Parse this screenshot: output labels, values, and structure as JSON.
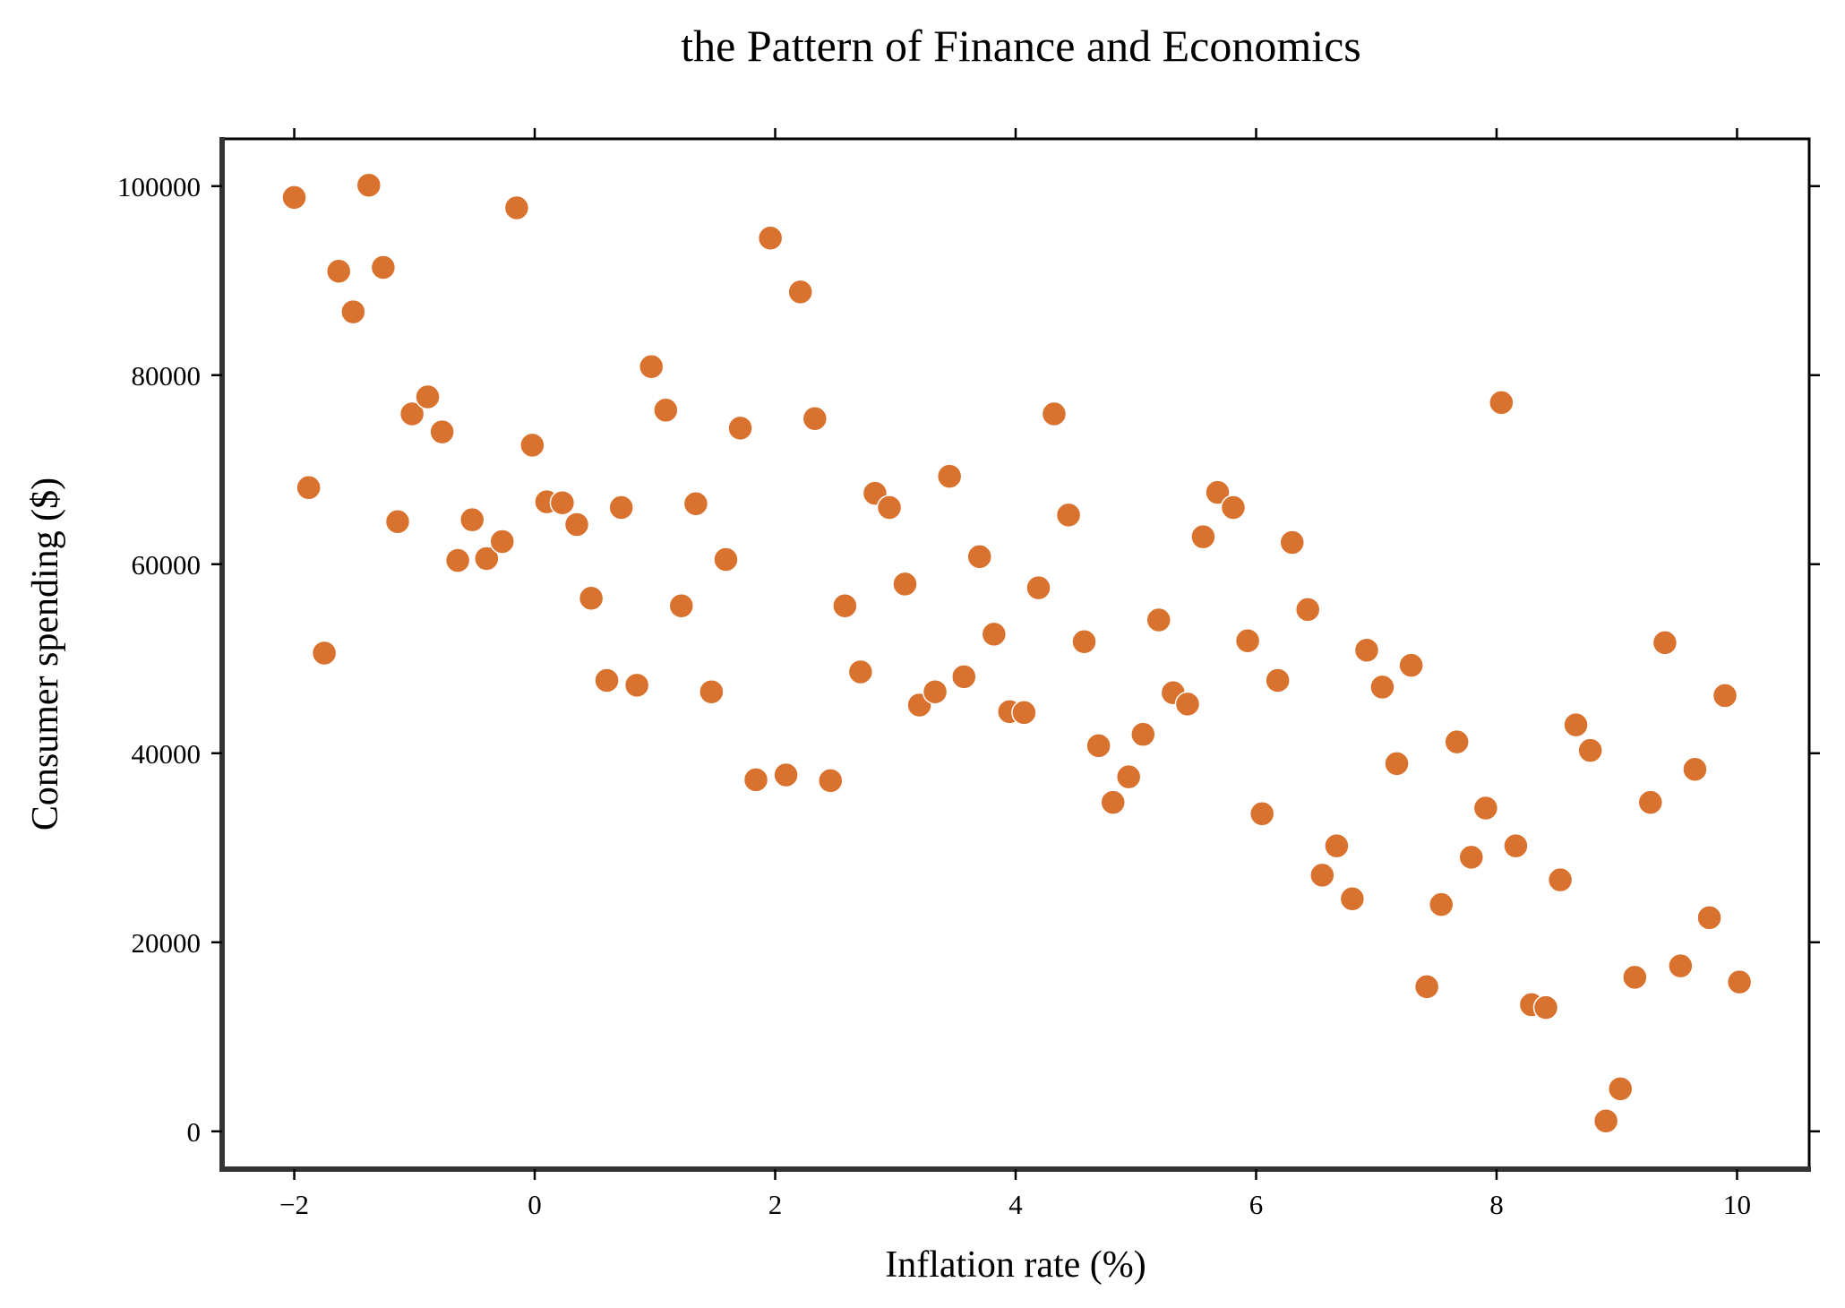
{
  "chart_data": {
    "type": "scatter",
    "title": "the Pattern of Finance and Economics",
    "xlabel": "Inflation rate (%)",
    "ylabel": "Consumer spending ($)",
    "xlim": [
      -2.6,
      10.6
    ],
    "ylim": [
      -4000,
      105000
    ],
    "xticks": [
      -2,
      0,
      2,
      4,
      6,
      8,
      10
    ],
    "xtick_labels": [
      "−2",
      "0",
      "2",
      "4",
      "6",
      "8",
      "10"
    ],
    "yticks": [
      0,
      20000,
      40000,
      60000,
      80000,
      100000
    ],
    "ytick_labels": [
      "0",
      "20000",
      "40000",
      "60000",
      "80000",
      "100000"
    ],
    "grid": false,
    "legend": "none",
    "marker_color": "#d9722e",
    "marker_edge_color": "#ffffff",
    "points": [
      {
        "x": -2.0,
        "y": 98800
      },
      {
        "x": -1.88,
        "y": 68100
      },
      {
        "x": -1.75,
        "y": 50600
      },
      {
        "x": -1.63,
        "y": 91000
      },
      {
        "x": -1.51,
        "y": 86700
      },
      {
        "x": -1.38,
        "y": 100100
      },
      {
        "x": -1.26,
        "y": 91400
      },
      {
        "x": -1.14,
        "y": 64500
      },
      {
        "x": -1.02,
        "y": 75900
      },
      {
        "x": -0.89,
        "y": 77700
      },
      {
        "x": -0.77,
        "y": 74000
      },
      {
        "x": -0.64,
        "y": 60400
      },
      {
        "x": -0.52,
        "y": 64700
      },
      {
        "x": -0.4,
        "y": 60600
      },
      {
        "x": -0.27,
        "y": 62400
      },
      {
        "x": -0.15,
        "y": 97700
      },
      {
        "x": -0.02,
        "y": 72600
      },
      {
        "x": 0.1,
        "y": 66600
      },
      {
        "x": 0.23,
        "y": 66500
      },
      {
        "x": 0.35,
        "y": 64200
      },
      {
        "x": 0.47,
        "y": 56400
      },
      {
        "x": 0.6,
        "y": 47700
      },
      {
        "x": 0.72,
        "y": 66000
      },
      {
        "x": 0.85,
        "y": 47200
      },
      {
        "x": 0.97,
        "y": 80900
      },
      {
        "x": 1.09,
        "y": 76300
      },
      {
        "x": 1.22,
        "y": 55600
      },
      {
        "x": 1.34,
        "y": 66400
      },
      {
        "x": 1.47,
        "y": 46500
      },
      {
        "x": 1.59,
        "y": 60500
      },
      {
        "x": 1.71,
        "y": 74400
      },
      {
        "x": 1.84,
        "y": 37200
      },
      {
        "x": 1.96,
        "y": 94500
      },
      {
        "x": 2.09,
        "y": 37700
      },
      {
        "x": 2.21,
        "y": 88800
      },
      {
        "x": 2.33,
        "y": 75400
      },
      {
        "x": 2.46,
        "y": 37100
      },
      {
        "x": 2.58,
        "y": 55600
      },
      {
        "x": 2.71,
        "y": 48600
      },
      {
        "x": 2.83,
        "y": 67500
      },
      {
        "x": 2.95,
        "y": 66000
      },
      {
        "x": 3.08,
        "y": 57900
      },
      {
        "x": 3.2,
        "y": 45100
      },
      {
        "x": 3.33,
        "y": 46500
      },
      {
        "x": 3.45,
        "y": 69300
      },
      {
        "x": 3.57,
        "y": 48100
      },
      {
        "x": 3.7,
        "y": 60800
      },
      {
        "x": 3.82,
        "y": 52600
      },
      {
        "x": 3.95,
        "y": 44400
      },
      {
        "x": 4.07,
        "y": 44300
      },
      {
        "x": 4.19,
        "y": 57500
      },
      {
        "x": 4.32,
        "y": 75900
      },
      {
        "x": 4.44,
        "y": 65200
      },
      {
        "x": 4.57,
        "y": 51800
      },
      {
        "x": 4.69,
        "y": 40800
      },
      {
        "x": 4.81,
        "y": 34800
      },
      {
        "x": 4.94,
        "y": 37500
      },
      {
        "x": 5.06,
        "y": 42000
      },
      {
        "x": 5.19,
        "y": 54100
      },
      {
        "x": 5.31,
        "y": 46400
      },
      {
        "x": 5.43,
        "y": 45200
      },
      {
        "x": 5.56,
        "y": 62900
      },
      {
        "x": 5.68,
        "y": 67600
      },
      {
        "x": 5.81,
        "y": 66000
      },
      {
        "x": 5.93,
        "y": 51900
      },
      {
        "x": 6.05,
        "y": 33600
      },
      {
        "x": 6.18,
        "y": 47700
      },
      {
        "x": 6.3,
        "y": 62300
      },
      {
        "x": 6.43,
        "y": 55200
      },
      {
        "x": 6.55,
        "y": 27100
      },
      {
        "x": 6.67,
        "y": 30200
      },
      {
        "x": 6.8,
        "y": 24600
      },
      {
        "x": 6.92,
        "y": 50900
      },
      {
        "x": 7.05,
        "y": 47000
      },
      {
        "x": 7.17,
        "y": 38900
      },
      {
        "x": 7.29,
        "y": 49300
      },
      {
        "x": 7.42,
        "y": 15300
      },
      {
        "x": 7.54,
        "y": 24000
      },
      {
        "x": 7.67,
        "y": 41200
      },
      {
        "x": 7.79,
        "y": 29000
      },
      {
        "x": 7.91,
        "y": 34200
      },
      {
        "x": 8.04,
        "y": 77100
      },
      {
        "x": 8.16,
        "y": 30200
      },
      {
        "x": 8.29,
        "y": 13400
      },
      {
        "x": 8.41,
        "y": 13100
      },
      {
        "x": 8.53,
        "y": 26600
      },
      {
        "x": 8.66,
        "y": 43000
      },
      {
        "x": 8.78,
        "y": 40300
      },
      {
        "x": 8.91,
        "y": 1100
      },
      {
        "x": 9.03,
        "y": 4500
      },
      {
        "x": 9.15,
        "y": 16300
      },
      {
        "x": 9.28,
        "y": 34800
      },
      {
        "x": 9.4,
        "y": 51700
      },
      {
        "x": 9.53,
        "y": 17500
      },
      {
        "x": 9.65,
        "y": 38300
      },
      {
        "x": 9.77,
        "y": 22600
      },
      {
        "x": 9.9,
        "y": 46100
      },
      {
        "x": 10.02,
        "y": 15800
      }
    ]
  }
}
